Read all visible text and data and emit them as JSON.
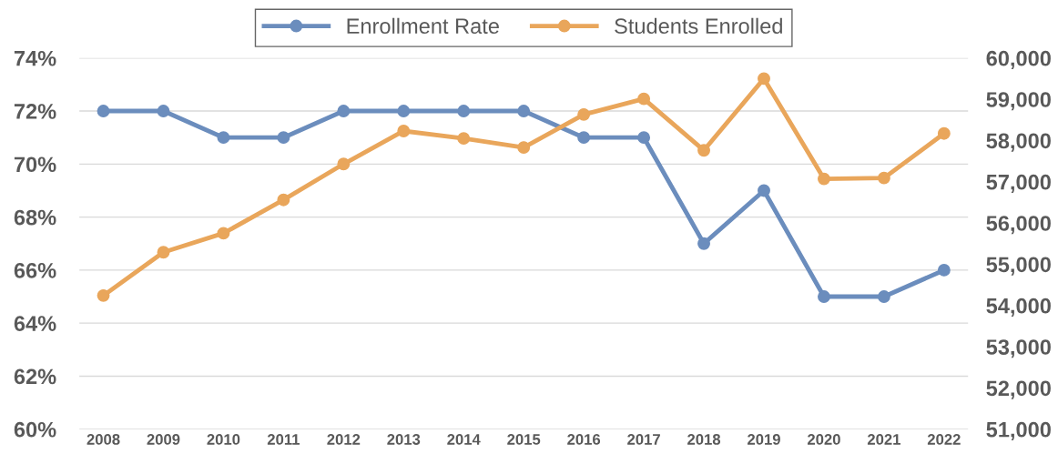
{
  "chart_data": {
    "type": "line",
    "categories": [
      "2008",
      "2009",
      "2010",
      "2011",
      "2012",
      "2013",
      "2014",
      "2015",
      "2016",
      "2017",
      "2018",
      "2019",
      "2020",
      "2021",
      "2022"
    ],
    "series": [
      {
        "name": "Enrollment Rate",
        "color": "#6b8dbd",
        "values": [
          72,
          72,
          71,
          71,
          72,
          72,
          72,
          72,
          71,
          71,
          67,
          69,
          65,
          65,
          66
        ]
      },
      {
        "name": "Students Enrolled",
        "color": "#e9a65b",
        "axis": "y2",
        "values": [
          54240,
          55290,
          55750,
          56560,
          57430,
          58230,
          58050,
          57830,
          58630,
          59010,
          57760,
          59500,
          57070,
          57090,
          58170
        ]
      }
    ],
    "ylim": [
      60,
      74
    ],
    "yticks": [
      {
        "value": 60,
        "label": "60%"
      },
      {
        "value": 62,
        "label": "62%"
      },
      {
        "value": 64,
        "label": "64%"
      },
      {
        "value": 66,
        "label": "66%"
      },
      {
        "value": 68,
        "label": "68%"
      },
      {
        "value": 70,
        "label": "70%"
      },
      {
        "value": 72,
        "label": "72%"
      },
      {
        "value": 74,
        "label": "74%"
      }
    ],
    "y2lim": [
      51000,
      60000
    ],
    "y2ticks": [
      {
        "value": 51000,
        "label": "51,000"
      },
      {
        "value": 52000,
        "label": "52,000"
      },
      {
        "value": 53000,
        "label": "53,000"
      },
      {
        "value": 54000,
        "label": "54,000"
      },
      {
        "value": 55000,
        "label": "55,000"
      },
      {
        "value": 56000,
        "label": "56,000"
      },
      {
        "value": 57000,
        "label": "57,000"
      },
      {
        "value": 58000,
        "label": "58,000"
      },
      {
        "value": 59000,
        "label": "59,000"
      },
      {
        "value": 60000,
        "label": "60,000"
      }
    ],
    "grid": "y",
    "legend": "top",
    "marker": "circle",
    "line_style": "solid"
  }
}
